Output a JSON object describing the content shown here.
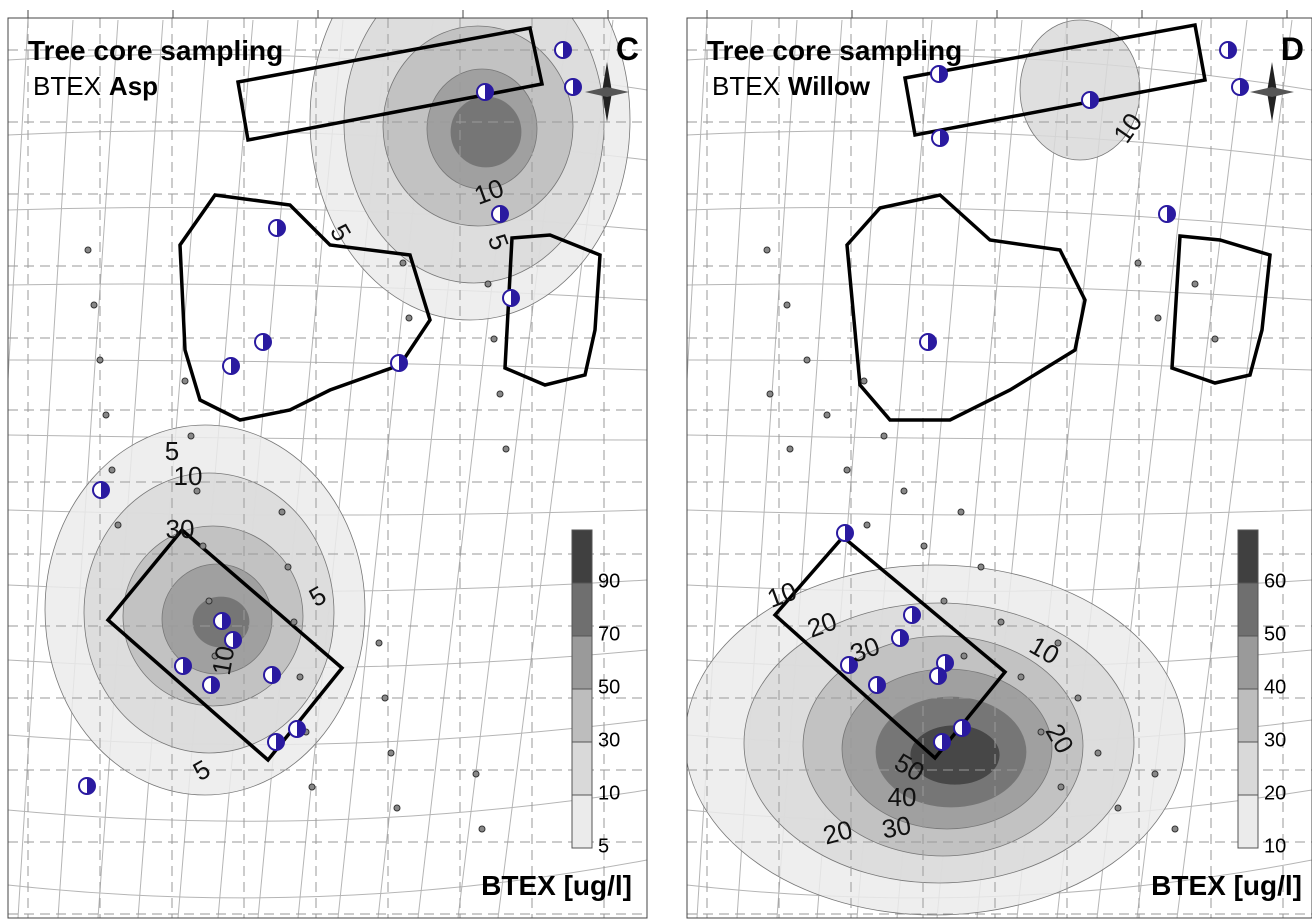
{
  "panels": [
    {
      "letter": "C",
      "title": "Tree core sampling",
      "subtitle_prefix": "BTEX",
      "subtitle_species": "Asp",
      "legend_levels": [
        5,
        10,
        30,
        50,
        70,
        90
      ],
      "legend_title": "BTEX  [ug/l]",
      "contour_labels": [
        5,
        10,
        30,
        5,
        10,
        5,
        10,
        5,
        5
      ]
    },
    {
      "letter": "D",
      "title": "Tree core sampling",
      "subtitle_prefix": "BTEX",
      "subtitle_species": "Willow",
      "legend_levels": [
        10,
        20,
        30,
        40,
        50,
        60
      ],
      "legend_title": "BTEX  [ug/l]",
      "contour_labels": [
        10,
        10,
        20,
        30,
        10,
        20,
        50,
        40,
        30,
        20
      ]
    }
  ]
}
